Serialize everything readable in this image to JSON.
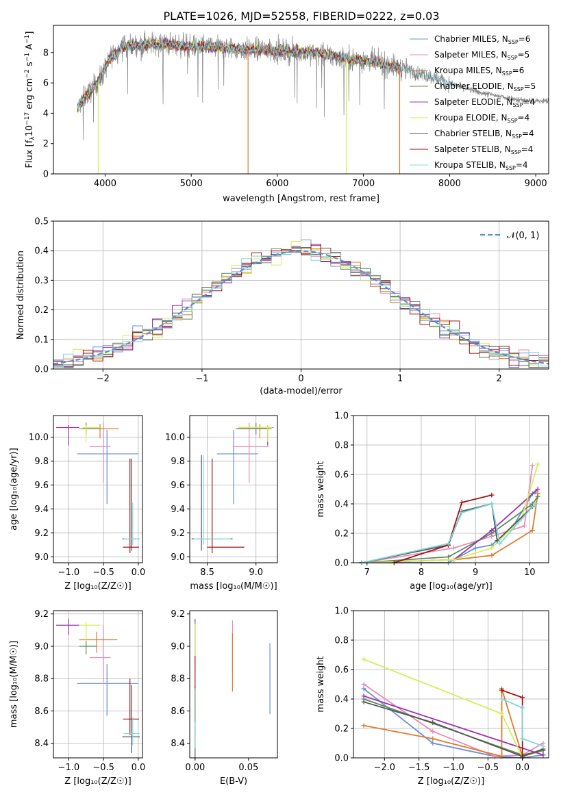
{
  "figure_title": "PLATE=1026, MJD=52558, FIBERID=0222, z=0.03",
  "colors": {
    "Chabrier MILES": "#6b8fd6",
    "Salpeter MILES": "#e88ab6",
    "Kroupa MILES": "#e07b2a",
    "Chabrier ELODIE": "#5a8a5a",
    "Salpeter ELODIE": "#9b30b0",
    "Kroupa ELODIE": "#d6ee55",
    "Chabrier STELIB": "#555555",
    "Salpeter STELIB": "#a01010",
    "Kroupa STELIB": "#7fd8e0",
    "data": "#808080",
    "normal": "#5b8fd6"
  },
  "chart_data": [
    {
      "id": "spectrum",
      "type": "line",
      "xlabel": "wavelength [Angstrom, rest frame]",
      "ylabel_main": "Flux [f",
      "ylabel_sub": "λ",
      "ylabel_rest": "10",
      "ylabel_exp": "−17",
      "ylabel_unit": " erg cm",
      "ylabel_unit_exp1": "−2",
      "ylabel_unit2": " s",
      "ylabel_unit_exp2": "−1",
      "ylabel_unit3": " A",
      "ylabel_unit_exp3": "−1",
      "ylabel_end": "]",
      "xlim": [
        3400,
        9150
      ],
      "ylim": [
        0,
        9.8
      ],
      "xticks": [
        "4000",
        "5000",
        "6000",
        "7000",
        "8000",
        "9000"
      ],
      "yticks": [
        "0",
        "2",
        "4",
        "6",
        "8"
      ],
      "grid": false,
      "legend_position": "upper right",
      "legend": [
        {
          "label": "Chabrier MILES, N",
          "sub": "SSP",
          "eq": "=6",
          "color": "#6b8fd6"
        },
        {
          "label": "Salpeter MILES, N",
          "sub": "SSP",
          "eq": "=5",
          "color": "#e88ab6"
        },
        {
          "label": "Kroupa MILES, N",
          "sub": "SSP",
          "eq": "=6",
          "color": "#e07b2a"
        },
        {
          "label": "Chabrier ELODIE, N",
          "sub": "SSP",
          "eq": "=5",
          "color": "#5a8a5a"
        },
        {
          "label": "Salpeter ELODIE, N",
          "sub": "SSP",
          "eq": "=4",
          "color": "#9b30b0"
        },
        {
          "label": "Kroupa ELODIE, N",
          "sub": "SSP",
          "eq": "=4",
          "color": "#d6ee55"
        },
        {
          "label": "Chabrier STELIB, N",
          "sub": "SSP",
          "eq": "=4",
          "color": "#555555"
        },
        {
          "label": "Salpeter STELIB, N",
          "sub": "SSP",
          "eq": "=4",
          "color": "#a01010"
        },
        {
          "label": "Kroupa STELIB, N",
          "sub": "SSP",
          "eq": "=4",
          "color": "#7fd8e0"
        }
      ],
      "continuum_shape": {
        "x": [
          3680,
          3750,
          3850,
          3950,
          4050,
          4200,
          4400,
          4600,
          4800,
          5000,
          5200,
          5400,
          5600,
          5800,
          6000,
          6200,
          6400,
          6600,
          6800,
          7000,
          7200,
          7400,
          7600,
          7800,
          8000,
          8200,
          8400,
          8600,
          8800,
          9000,
          9150
        ],
        "y": [
          4.3,
          5.0,
          5.6,
          6.3,
          7.6,
          8.4,
          8.5,
          8.6,
          8.5,
          8.4,
          8.4,
          8.3,
          8.2,
          8.2,
          8.1,
          8.05,
          8.0,
          7.85,
          7.6,
          7.5,
          7.3,
          7.0,
          6.7,
          6.4,
          6.0,
          5.6,
          5.3,
          5.1,
          4.9,
          4.8,
          4.8
        ]
      },
      "models_end_x": 7430,
      "data_end_x": 9150
    },
    {
      "id": "residuals",
      "type": "bar",
      "xlabel": "(data-model)/error",
      "ylabel": "Normed distribution",
      "xlim": [
        -2.5,
        2.5
      ],
      "ylim": [
        0,
        0.5
      ],
      "xticks": [
        "−2",
        "−1",
        "0",
        "1",
        "2"
      ],
      "yticks": [
        "0.0",
        "0.1",
        "0.2",
        "0.3",
        "0.4",
        "0.5"
      ],
      "grid": true,
      "legend_position": "upper right",
      "legend": [
        {
          "label": "𝒩(0, 1)",
          "style": "dashed",
          "color": "#5b8fd6"
        }
      ],
      "bin_width": 0.1
    },
    {
      "id": "age_vs_Z",
      "type": "scatter",
      "xlabel": "Z [log₁₀(Z/Z☉)]",
      "ylabel": "age  [log₁₀(age/yr)]",
      "xlim": [
        -1.22,
        0.06
      ],
      "ylim": [
        8.95,
        10.18
      ],
      "xticks": [
        "−1.0",
        "−0.5",
        "0.0"
      ],
      "yticks": [
        "9.0",
        "9.2",
        "9.4",
        "9.6",
        "9.8",
        "10.0"
      ],
      "grid": true,
      "points": [
        {
          "series": "Chabrier MILES",
          "x": -0.45,
          "y": 9.86,
          "xerr": [
            0.43,
            0.45
          ],
          "yerr": [
            0.42,
            0.2
          ]
        },
        {
          "series": "Salpeter MILES",
          "x": -0.5,
          "y": 9.92,
          "xerr": [
            0.2,
            0.1
          ],
          "yerr": [
            0.3,
            0.2
          ]
        },
        {
          "series": "Kroupa MILES",
          "x": -0.55,
          "y": 10.07,
          "xerr": [
            0.3,
            0.27
          ],
          "yerr": [
            0.08,
            0.04
          ]
        },
        {
          "series": "Chabrier ELODIE",
          "x": -0.75,
          "y": 10.07,
          "xerr": [
            0.05,
            0.2
          ],
          "yerr": [
            0.05,
            0.05
          ]
        },
        {
          "series": "Salpeter ELODIE",
          "x": -1.0,
          "y": 10.08,
          "xerr": [
            0.18,
            0.15
          ],
          "yerr": [
            0.15,
            0.02
          ]
        },
        {
          "series": "Kroupa ELODIE",
          "x": -0.75,
          "y": 10.08,
          "xerr": [
            0.05,
            0.2
          ],
          "yerr": [
            0.12,
            0.02
          ]
        },
        {
          "series": "Chabrier STELIB",
          "x": -0.1,
          "y": 9.15,
          "xerr": [
            0.13,
            0.12
          ],
          "yerr": [
            0.1,
            0.67
          ]
        },
        {
          "series": "Salpeter STELIB",
          "x": -0.12,
          "y": 9.08,
          "xerr": [
            0.1,
            0.13
          ],
          "yerr": [
            0.05,
            0.74
          ]
        },
        {
          "series": "Kroupa STELIB",
          "x": -0.08,
          "y": 9.15,
          "xerr": [
            0.13,
            0.1
          ],
          "yerr": [
            0.05,
            0.3
          ]
        }
      ]
    },
    {
      "id": "age_vs_mass",
      "type": "scatter",
      "xlabel": "mass [log₁₀(M/M☉)]",
      "ylabel": "",
      "xlim": [
        8.32,
        9.22
      ],
      "ylim": [
        8.95,
        10.18
      ],
      "xticks": [
        "8.5",
        "9.0"
      ],
      "yticks": [
        "9.0",
        "9.2",
        "9.4",
        "9.6",
        "9.8",
        "10.0"
      ],
      "grid": true,
      "points": [
        {
          "series": "Chabrier MILES",
          "x": 8.77,
          "y": 9.86,
          "xerr": [
            0.17,
            0.25
          ],
          "yerr": [
            0.42,
            0.2
          ]
        },
        {
          "series": "Salpeter MILES",
          "x": 8.93,
          "y": 9.92,
          "xerr": [
            0.17,
            0.2
          ],
          "yerr": [
            0.3,
            0.2
          ]
        },
        {
          "series": "Kroupa MILES",
          "x": 9.04,
          "y": 10.07,
          "xerr": [
            0.25,
            0.12
          ],
          "yerr": [
            0.08,
            0.04
          ]
        },
        {
          "series": "Chabrier ELODIE",
          "x": 9.0,
          "y": 10.07,
          "xerr": [
            0.2,
            0.12
          ],
          "yerr": [
            0.05,
            0.05
          ]
        },
        {
          "series": "Salpeter ELODIE",
          "x": 9.12,
          "y": 10.08,
          "xerr": [
            0.3,
            0.06
          ],
          "yerr": [
            0.15,
            0.02
          ]
        },
        {
          "series": "Kroupa ELODIE",
          "x": 9.12,
          "y": 10.08,
          "xerr": [
            0.3,
            0.05
          ],
          "yerr": [
            0.12,
            0.02
          ]
        },
        {
          "series": "Chabrier STELIB",
          "x": 8.44,
          "y": 9.15,
          "xerr": [
            0.1,
            0.32
          ],
          "yerr": [
            0.1,
            0.7
          ]
        },
        {
          "series": "Salpeter STELIB",
          "x": 8.55,
          "y": 9.08,
          "xerr": [
            0.05,
            0.33
          ],
          "yerr": [
            0.05,
            0.74
          ]
        },
        {
          "series": "Kroupa STELIB",
          "x": 8.46,
          "y": 9.15,
          "xerr": [
            0.1,
            0.28
          ],
          "yerr": [
            0.05,
            0.7
          ]
        }
      ]
    },
    {
      "id": "mass_weight_vs_age",
      "type": "line",
      "xlabel": "age  [log₁₀(age/yr)]",
      "ylabel": "mass weight",
      "xlim": [
        6.75,
        10.35
      ],
      "ylim": [
        0,
        1.0
      ],
      "xticks": [
        "7",
        "8",
        "9",
        "10"
      ],
      "yticks": [
        "0.0",
        "0.2",
        "0.4",
        "0.6",
        "0.8",
        "1.0"
      ],
      "grid": true,
      "series": [
        {
          "name": "Chabrier MILES",
          "x": [
            6.9,
            8.5,
            9.0,
            9.3,
            9.7,
            10.05,
            10.1
          ],
          "y": [
            0.0,
            0.0,
            0.1,
            0.12,
            0.25,
            0.47,
            0.48
          ]
        },
        {
          "name": "Salpeter MILES",
          "x": [
            6.9,
            8.6,
            9.3,
            9.9,
            10.05
          ],
          "y": [
            0.0,
            0.1,
            0.18,
            0.25,
            0.66
          ]
        },
        {
          "name": "Kroupa MILES",
          "x": [
            6.9,
            8.6,
            9.3,
            10.05,
            10.15
          ],
          "y": [
            0.0,
            0.02,
            0.05,
            0.22,
            0.47
          ]
        },
        {
          "name": "Chabrier ELODIE",
          "x": [
            6.9,
            8.5,
            9.3,
            10.05,
            10.15
          ],
          "y": [
            0.0,
            0.04,
            0.2,
            0.4,
            0.45
          ]
        },
        {
          "name": "Salpeter ELODIE",
          "x": [
            6.9,
            8.6,
            9.3,
            10.15
          ],
          "y": [
            0.0,
            0.02,
            0.22,
            0.5
          ]
        },
        {
          "name": "Kroupa ELODIE",
          "x": [
            6.9,
            8.6,
            9.3,
            9.85,
            10.15
          ],
          "y": [
            0.0,
            0.02,
            0.1,
            0.3,
            0.67
          ]
        },
        {
          "name": "Chabrier STELIB",
          "x": [
            6.9,
            8.5,
            8.75,
            9.3,
            9.4,
            10.05
          ],
          "y": [
            0.0,
            0.12,
            0.35,
            0.4,
            0.15,
            0.38
          ]
        },
        {
          "name": "Salpeter STELIB",
          "x": [
            7.5,
            8.5,
            8.75,
            9.3
          ],
          "y": [
            0.0,
            0.12,
            0.41,
            0.46
          ]
        },
        {
          "name": "Kroupa STELIB",
          "x": [
            6.9,
            8.5,
            8.75,
            9.3,
            9.45,
            10.1
          ],
          "y": [
            0.0,
            0.13,
            0.34,
            0.4,
            0.13,
            0.4
          ]
        }
      ]
    },
    {
      "id": "mass_vs_Z",
      "type": "scatter",
      "xlabel": "Z [log₁₀(Z/Z☉)]",
      "ylabel": "mass [log₁₀(M/M☉)]",
      "xlim": [
        -1.22,
        0.06
      ],
      "ylim": [
        8.31,
        9.22
      ],
      "xticks": [
        "−1.0",
        "−0.5",
        "0.0"
      ],
      "yticks": [
        "8.4",
        "8.6",
        "8.8",
        "9.0",
        "9.2"
      ],
      "grid": true,
      "points": [
        {
          "series": "Chabrier MILES",
          "x": -0.45,
          "y": 8.77,
          "xerr": [
            0.43,
            0.45
          ],
          "yerr": [
            0.2,
            0.12
          ]
        },
        {
          "series": "Salpeter MILES",
          "x": -0.5,
          "y": 8.93,
          "xerr": [
            0.2,
            0.1
          ],
          "yerr": [
            0.15,
            0.2
          ]
        },
        {
          "series": "Kroupa MILES",
          "x": -0.6,
          "y": 9.04,
          "xerr": [
            0.25,
            0.3
          ],
          "yerr": [
            0.08,
            0.05
          ]
        },
        {
          "series": "Chabrier ELODIE",
          "x": -0.75,
          "y": 9.0,
          "xerr": [
            0.1,
            0.15
          ],
          "yerr": [
            0.05,
            0.05
          ]
        },
        {
          "series": "Salpeter ELODIE",
          "x": -1.0,
          "y": 9.13,
          "xerr": [
            0.18,
            0.15
          ],
          "yerr": [
            0.06,
            0.04
          ]
        },
        {
          "series": "Kroupa ELODIE",
          "x": -0.75,
          "y": 9.13,
          "xerr": [
            0.1,
            0.2
          ],
          "yerr": [
            0.1,
            0.02
          ]
        },
        {
          "series": "Chabrier STELIB",
          "x": -0.1,
          "y": 8.44,
          "xerr": [
            0.13,
            0.12
          ],
          "yerr": [
            0.1,
            0.32
          ]
        },
        {
          "series": "Salpeter STELIB",
          "x": -0.12,
          "y": 8.55,
          "xerr": [
            0.1,
            0.13
          ],
          "yerr": [
            0.1,
            0.25
          ]
        },
        {
          "series": "Kroupa STELIB",
          "x": -0.08,
          "y": 8.46,
          "xerr": [
            0.13,
            0.1
          ],
          "yerr": [
            0.07,
            0.1
          ]
        }
      ]
    },
    {
      "id": "mass_vs_ebv",
      "type": "scatter",
      "xlabel": "E(B-V)",
      "ylabel": "",
      "xlim": [
        -0.005,
        0.077
      ],
      "ylim": [
        8.31,
        9.22
      ],
      "xticks": [
        "0.00",
        "0.05"
      ],
      "yticks": [
        "8.4",
        "8.6",
        "8.8",
        "9.0",
        "9.2"
      ],
      "grid": false,
      "points": [
        {
          "series": "Chabrier MILES",
          "x": 0.07,
          "y": 8.8,
          "yerr": [
            0.22,
            0.22
          ]
        },
        {
          "series": "Salpeter MILES",
          "x": 0.035,
          "y": 9.0,
          "yerr": [
            0.16,
            0.16
          ]
        },
        {
          "series": "Kroupa MILES",
          "x": 0.035,
          "y": 8.9,
          "yerr": [
            0.18,
            0.18
          ]
        },
        {
          "series": "Chabrier ELODIE",
          "x": 0.0,
          "y": 8.57,
          "yerr": [
            0.18,
            0.18
          ]
        },
        {
          "series": "Salpeter ELODIE",
          "x": 0.0,
          "y": 9.05,
          "yerr": [
            0.12,
            0.12
          ]
        },
        {
          "series": "Kroupa ELODIE",
          "x": 0.0,
          "y": 9.02,
          "yerr": [
            0.12,
            0.12
          ]
        },
        {
          "series": "Chabrier STELIB",
          "x": 0.0,
          "y": 8.4,
          "yerr": [
            0.1,
            0.1
          ]
        },
        {
          "series": "Salpeter STELIB",
          "x": 0.0,
          "y": 8.84,
          "yerr": [
            0.1,
            0.1
          ]
        },
        {
          "series": "Kroupa STELIB",
          "x": 0.0,
          "y": 8.45,
          "yerr": [
            0.08,
            0.08
          ]
        }
      ]
    },
    {
      "id": "mass_weight_vs_Z",
      "type": "line",
      "xlabel": "Z [log₁₀(Z/Z☉)]",
      "ylabel": "mass weight",
      "xlim": [
        -2.45,
        0.38
      ],
      "ylim": [
        0,
        1.0
      ],
      "xticks": [
        "−2.0",
        "−1.5",
        "−1.0",
        "−0.5",
        "0.0"
      ],
      "yticks": [
        "0.0",
        "0.2",
        "0.4",
        "0.6",
        "0.8",
        "1.0"
      ],
      "grid": true,
      "series": [
        {
          "name": "Chabrier MILES",
          "x": [
            -2.3,
            -1.3,
            -0.4,
            0.0,
            0.3
          ],
          "y": [
            0.47,
            0.1,
            0.01,
            0.0,
            0.02
          ]
        },
        {
          "name": "Salpeter MILES",
          "x": [
            -2.3,
            -1.3,
            -0.4,
            0.0,
            0.3
          ],
          "y": [
            0.5,
            0.18,
            0.01,
            0.02,
            0.1
          ]
        },
        {
          "name": "Kroupa MILES",
          "x": [
            -2.3,
            -1.3,
            -0.3,
            -0.3,
            0.0,
            0.3
          ],
          "y": [
            0.22,
            0.13,
            0.01,
            0.47,
            0.01,
            0.05
          ]
        },
        {
          "name": "Chabrier ELODIE",
          "x": [
            -2.3,
            0.0,
            0.3
          ],
          "y": [
            0.4,
            0.02,
            0.05
          ]
        },
        {
          "name": "Salpeter ELODIE",
          "x": [
            -2.3,
            0.3
          ],
          "y": [
            0.42,
            0.02
          ]
        },
        {
          "name": "Kroupa ELODIE",
          "x": [
            -2.3,
            -0.3,
            0.0
          ],
          "y": [
            0.67,
            0.3,
            0.0
          ]
        },
        {
          "name": "Chabrier STELIB",
          "x": [
            -2.3,
            -1.3,
            0.0,
            0.3
          ],
          "y": [
            0.38,
            0.24,
            0.01,
            0.06
          ]
        },
        {
          "name": "Salpeter STELIB",
          "x": [
            -0.3,
            0.0,
            0.0
          ],
          "y": [
            0.46,
            0.41,
            0.0
          ]
        },
        {
          "name": "Kroupa STELIB",
          "x": [
            -0.3,
            0.0,
            0.0,
            0.3
          ],
          "y": [
            0.4,
            0.34,
            0.13,
            0.08
          ]
        }
      ]
    }
  ]
}
